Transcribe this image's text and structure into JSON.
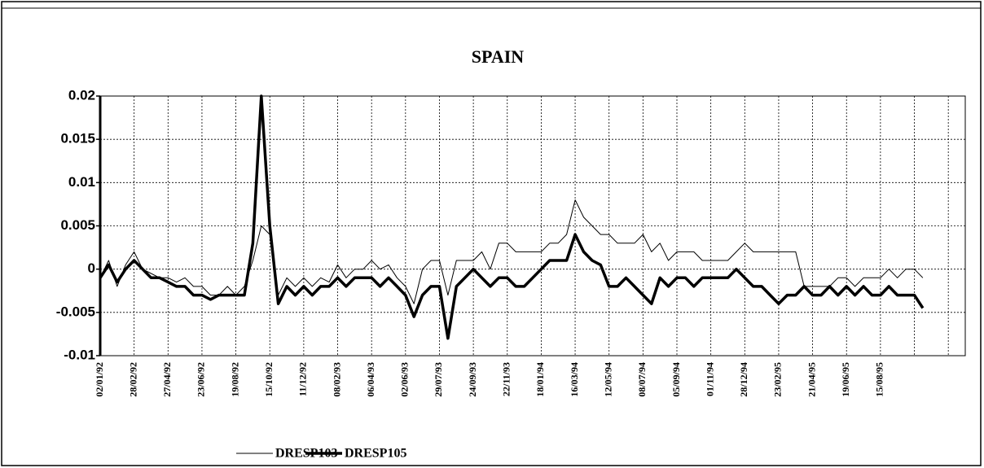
{
  "chart_data": {
    "type": "line",
    "title": "SPAIN",
    "categories": [
      "02/01/92",
      null,
      null,
      null,
      "28/02/92",
      null,
      null,
      null,
      "27/04/92",
      null,
      null,
      null,
      "23/06/92",
      null,
      null,
      null,
      "19/08/92",
      null,
      null,
      null,
      "15/10/92",
      null,
      null,
      null,
      "11/12/92",
      null,
      null,
      null,
      "08/02/93",
      null,
      null,
      null,
      "06/04/93",
      null,
      null,
      null,
      "02/06/93",
      null,
      null,
      null,
      "29/07/93",
      null,
      null,
      null,
      "24/09/93",
      null,
      null,
      null,
      "22/11/93",
      null,
      null,
      null,
      "18/01/94",
      null,
      null,
      null,
      "16/03/94",
      null,
      null,
      null,
      "12/05/94",
      null,
      null,
      null,
      "08/07/94",
      null,
      null,
      null,
      "05/09/94",
      null,
      null,
      null,
      "01/11/94",
      null,
      null,
      null,
      "28/12/94",
      null,
      null,
      null,
      "23/02/95",
      null,
      null,
      null,
      "21/04/95",
      null,
      null,
      null,
      "19/06/95",
      null,
      null,
      null,
      "15/08/95",
      null,
      null,
      null,
      null,
      null,
      null,
      null,
      null,
      null
    ],
    "series": [
      {
        "name": "DRESP103",
        "color": "#000000",
        "values": [
          -0.001,
          0.001,
          -0.002,
          0.0005,
          0.002,
          0,
          -0.0005,
          -0.001,
          -0.001,
          -0.0015,
          -0.001,
          -0.002,
          -0.002,
          -0.003,
          -0.003,
          -0.002,
          -0.003,
          -0.002,
          0.001,
          0.005,
          0.004,
          -0.003,
          -0.001,
          -0.002,
          -0.001,
          -0.002,
          -0.001,
          -0.0015,
          0.0005,
          -0.001,
          0,
          0,
          0.001,
          0,
          0.0005,
          -0.001,
          -0.002,
          -0.004,
          0,
          0.001,
          0.001,
          -0.003,
          0.001,
          0.001,
          0.001,
          0.002,
          0,
          0.003,
          0.003,
          0.002,
          0.002,
          0.002,
          0.002,
          0.003,
          0.003,
          0.004,
          0.008,
          0.006,
          0.005,
          0.004,
          0.004,
          0.003,
          0.003,
          0.003,
          0.004,
          0.002,
          0.003,
          0.001,
          0.002,
          0.002,
          0.002,
          0.001,
          0.001,
          0.001,
          0.001,
          0.002,
          0.003,
          0.002,
          0.002,
          0.002,
          0.002,
          0.002,
          0.002,
          -0.002,
          -0.002,
          -0.002,
          -0.002,
          -0.001,
          -0.001,
          -0.002,
          -0.001,
          -0.001,
          -0.001,
          0,
          -0.001,
          0,
          0,
          -0.001,
          null,
          null,
          null,
          null
        ]
      },
      {
        "name": "DRESP105",
        "color": "#000000",
        "values": [
          -0.001,
          0.0005,
          -0.0015,
          0,
          0.001,
          0,
          -0.001,
          -0.001,
          -0.0015,
          -0.002,
          -0.002,
          -0.003,
          -0.003,
          -0.0035,
          -0.003,
          -0.003,
          -0.003,
          -0.003,
          0.003,
          0.02,
          0.005,
          -0.004,
          -0.002,
          -0.003,
          -0.002,
          -0.003,
          -0.002,
          -0.002,
          -0.001,
          -0.002,
          -0.001,
          -0.001,
          -0.001,
          -0.002,
          -0.001,
          -0.002,
          -0.003,
          -0.0055,
          -0.003,
          -0.002,
          -0.002,
          -0.008,
          -0.002,
          -0.001,
          0,
          -0.001,
          -0.002,
          -0.001,
          -0.001,
          -0.002,
          -0.002,
          -0.001,
          0,
          0.001,
          0.001,
          0.001,
          0.004,
          0.002,
          0.001,
          0.0005,
          -0.002,
          -0.002,
          -0.001,
          -0.002,
          -0.003,
          -0.004,
          -0.001,
          -0.002,
          -0.001,
          -0.001,
          -0.002,
          -0.001,
          -0.001,
          -0.001,
          -0.001,
          0,
          -0.001,
          -0.002,
          -0.002,
          -0.003,
          -0.004,
          -0.003,
          -0.003,
          -0.002,
          -0.003,
          -0.003,
          -0.002,
          -0.003,
          -0.002,
          -0.003,
          -0.002,
          -0.003,
          -0.003,
          -0.002,
          -0.003,
          -0.003,
          -0.003,
          -0.0045,
          null,
          null,
          null,
          null
        ]
      }
    ],
    "ylim": [
      -0.01,
      0.02
    ],
    "yticks": [
      0.02,
      0.015,
      0.01,
      0.005,
      0,
      -0.005,
      -0.01
    ],
    "grid": true
  }
}
